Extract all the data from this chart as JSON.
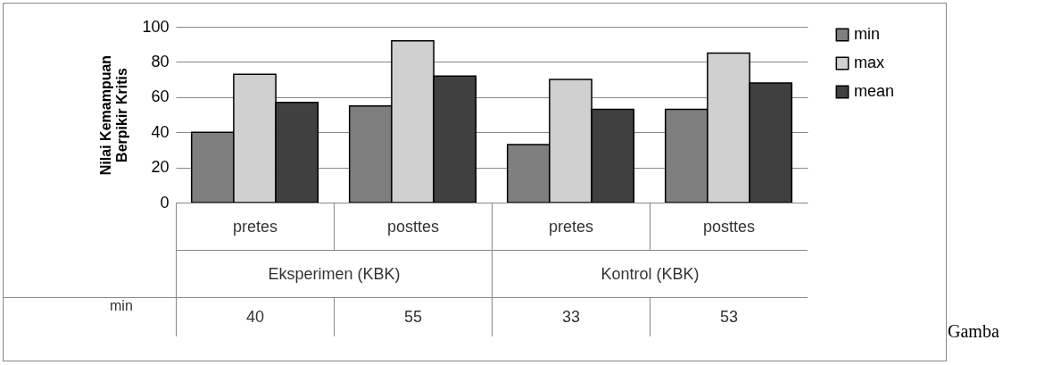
{
  "chart_data": {
    "type": "bar",
    "ylabel": "Nilai Kemampuan\nBerpikir Kritis",
    "categories": [
      "pretes",
      "posttes",
      "pretes",
      "posttes"
    ],
    "series": [
      {
        "name": "min",
        "color": "#7f7f7f",
        "values": [
          40,
          55,
          33,
          53
        ],
        "value_labels": [
          "40",
          "55",
          "33",
          "53"
        ]
      },
      {
        "name": "max",
        "color": "#d0d0d0",
        "values": [
          73,
          92,
          70,
          85
        ]
      },
      {
        "name": "mean",
        "color": "#404040",
        "values": [
          57,
          72,
          53,
          68
        ]
      }
    ],
    "ylim": [
      0,
      100
    ],
    "yticks": [
      0,
      20,
      40,
      60,
      80,
      100
    ],
    "grid": "y",
    "legend": "right",
    "annotations": [
      "Eksperimen (KBK)",
      "Kontrol (KBK)",
      "Gamba"
    ]
  }
}
